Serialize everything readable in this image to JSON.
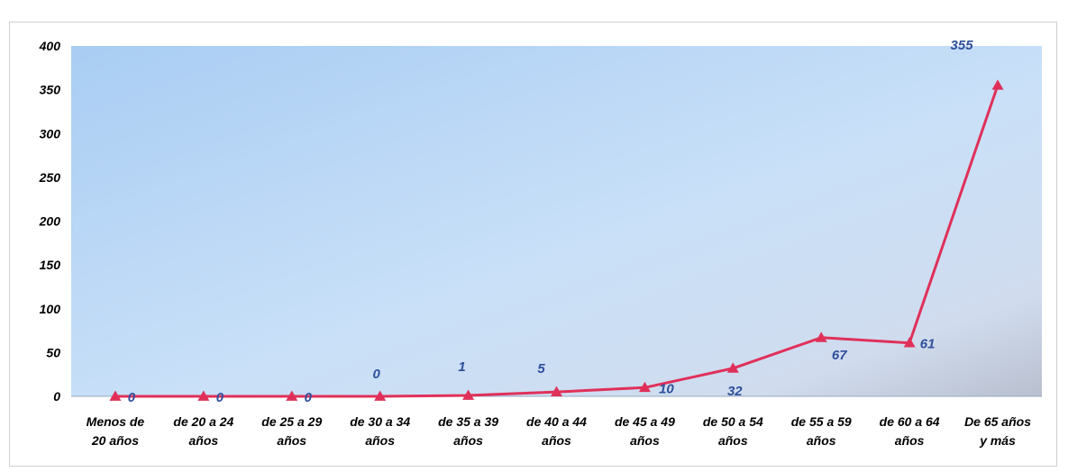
{
  "chart_data": {
    "type": "line",
    "categories": [
      [
        "Menos de",
        "20 años"
      ],
      [
        "de 20 a 24",
        "años"
      ],
      [
        "de 25 a 29",
        "años"
      ],
      [
        "de 30 a 34",
        "años"
      ],
      [
        "de 35 a 39",
        "años"
      ],
      [
        "de 40 a 44",
        "años"
      ],
      [
        "de 45 a 49",
        "años"
      ],
      [
        "de 50 a 54",
        "años"
      ],
      [
        "de 55 a 59",
        "años"
      ],
      [
        "de 60 a 64",
        "años"
      ],
      [
        "De 65 años",
        "y más"
      ]
    ],
    "series": [
      {
        "values": [
          0,
          0,
          0,
          0,
          1,
          5,
          10,
          32,
          67,
          61,
          355
        ]
      }
    ],
    "data_labels": [
      "0",
      "0",
      "0",
      "0",
      "1",
      "5",
      "10",
      "32",
      "67",
      "61",
      "355"
    ],
    "ylim": [
      0,
      400
    ],
    "yticks": [
      0,
      50,
      100,
      150,
      200,
      250,
      300,
      350,
      400
    ],
    "grid": false,
    "legend": "none",
    "title": "",
    "xlabel": "",
    "ylabel": "",
    "colors": {
      "line": "#e0305a",
      "marker": "#e0305a",
      "data_label": "#2e4f9a",
      "plot_bg_top": "#a8cdf2",
      "plot_bg_bottom": "#cfe4fb",
      "plot_bg_right": "#c4c9d6"
    },
    "marker": "triangle"
  }
}
